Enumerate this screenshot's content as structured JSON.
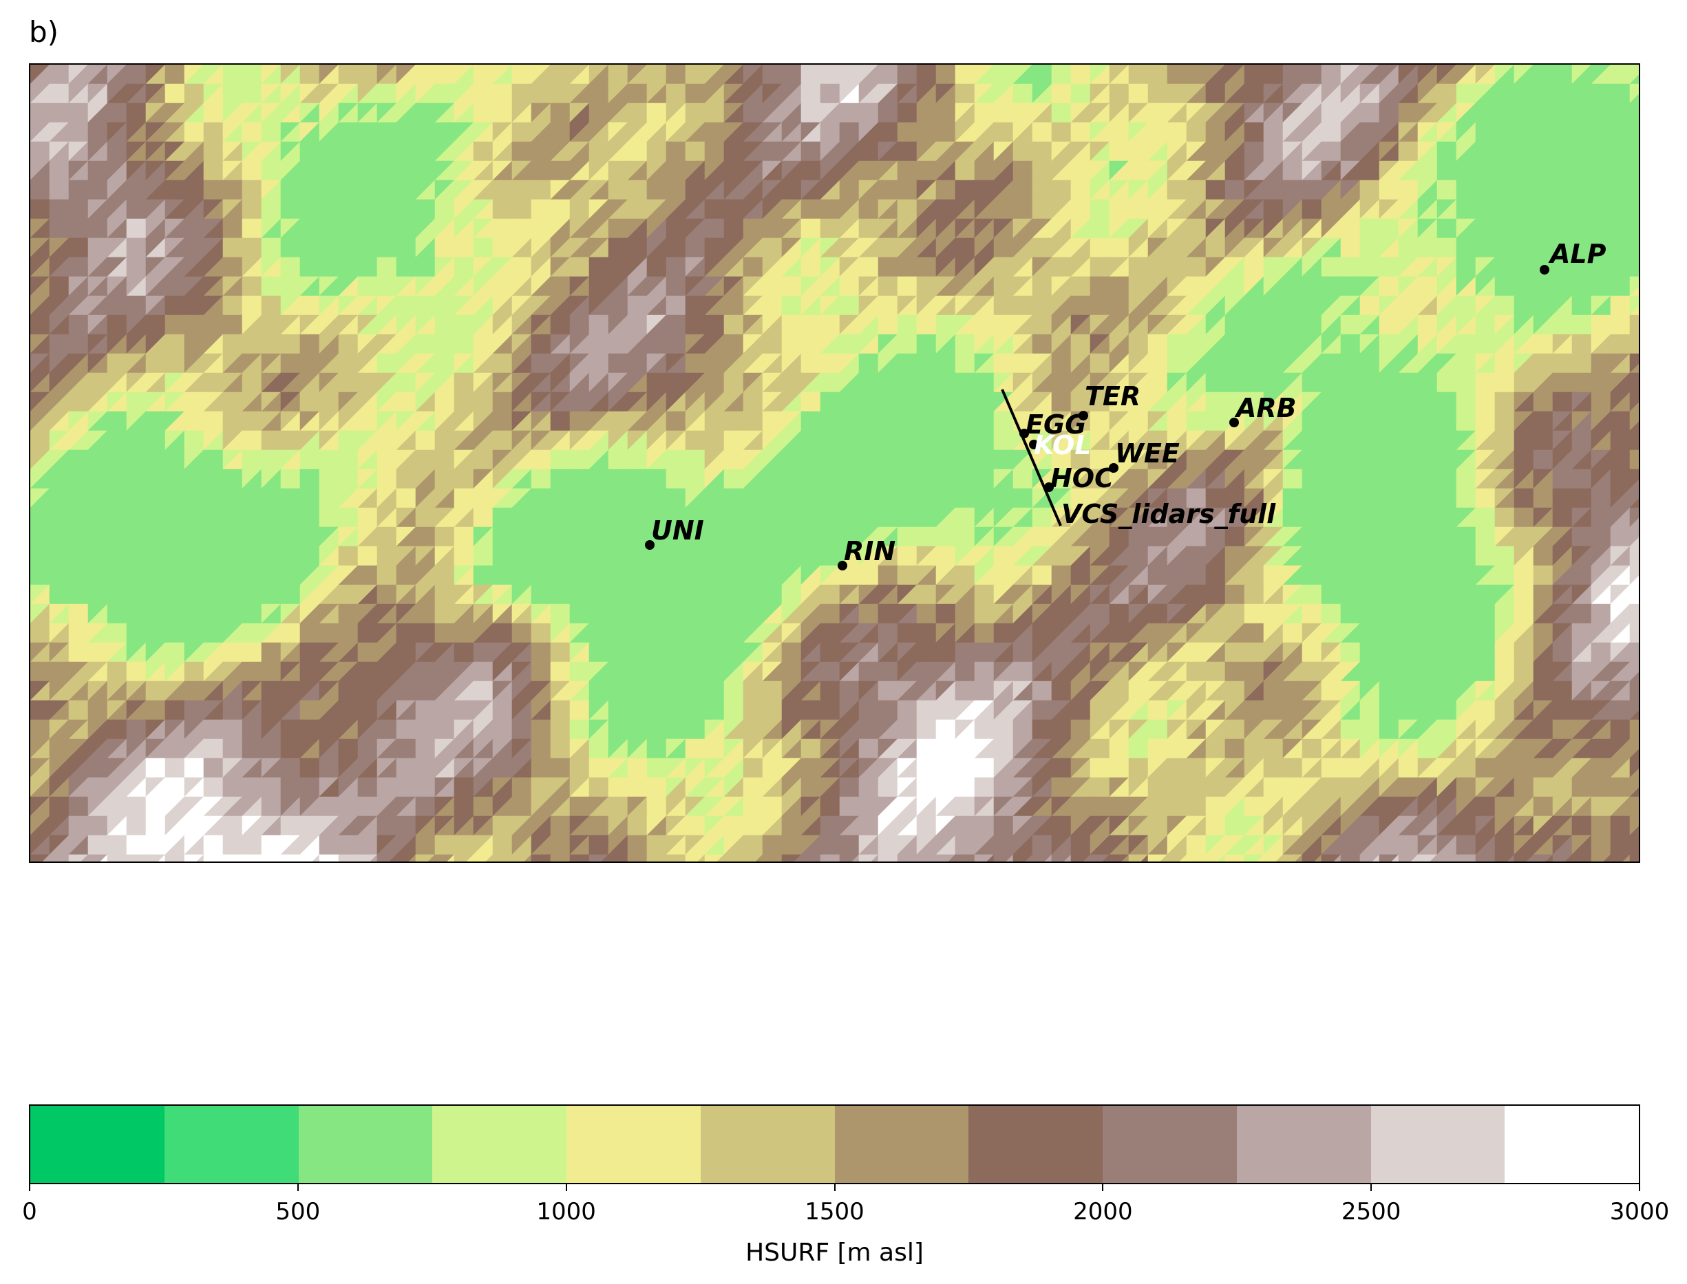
{
  "panel_label": "b)",
  "colorbar": {
    "title": "HSURF [m asl]",
    "levels": [
      0,
      250,
      500,
      750,
      1000,
      1250,
      1500,
      1750,
      2000,
      2250,
      2500,
      2750,
      3000
    ],
    "colors": [
      "#00c864",
      "#40dc78",
      "#86e682",
      "#cef48e",
      "#f2ec90",
      "#d0c57e",
      "#ad966c",
      "#8c6a5c",
      "#9a7e78",
      "#baa6a4",
      "#dcd2d0",
      "#ffffff"
    ],
    "tick_labels": [
      "0",
      "500",
      "1000",
      "1500",
      "2000",
      "2500",
      "3000"
    ]
  },
  "map": {
    "stations": [
      {
        "id": "ALP",
        "label": "ALP",
        "color": "#000000"
      },
      {
        "id": "TER",
        "label": "TER",
        "color": "#000000"
      },
      {
        "id": "EGG",
        "label": "EGG",
        "color": "#000000"
      },
      {
        "id": "KOL",
        "label": "KOL",
        "color": "#ffffff"
      },
      {
        "id": "ARB",
        "label": "ARB",
        "color": "#000000"
      },
      {
        "id": "WEE",
        "label": "WEE",
        "color": "#000000"
      },
      {
        "id": "HOC",
        "label": "HOC",
        "color": "#000000"
      },
      {
        "id": "UNI",
        "label": "UNI",
        "color": "#000000"
      },
      {
        "id": "RIN",
        "label": "RIN",
        "color": "#000000"
      }
    ],
    "cross_section_label": "VCS_lidars_full"
  }
}
